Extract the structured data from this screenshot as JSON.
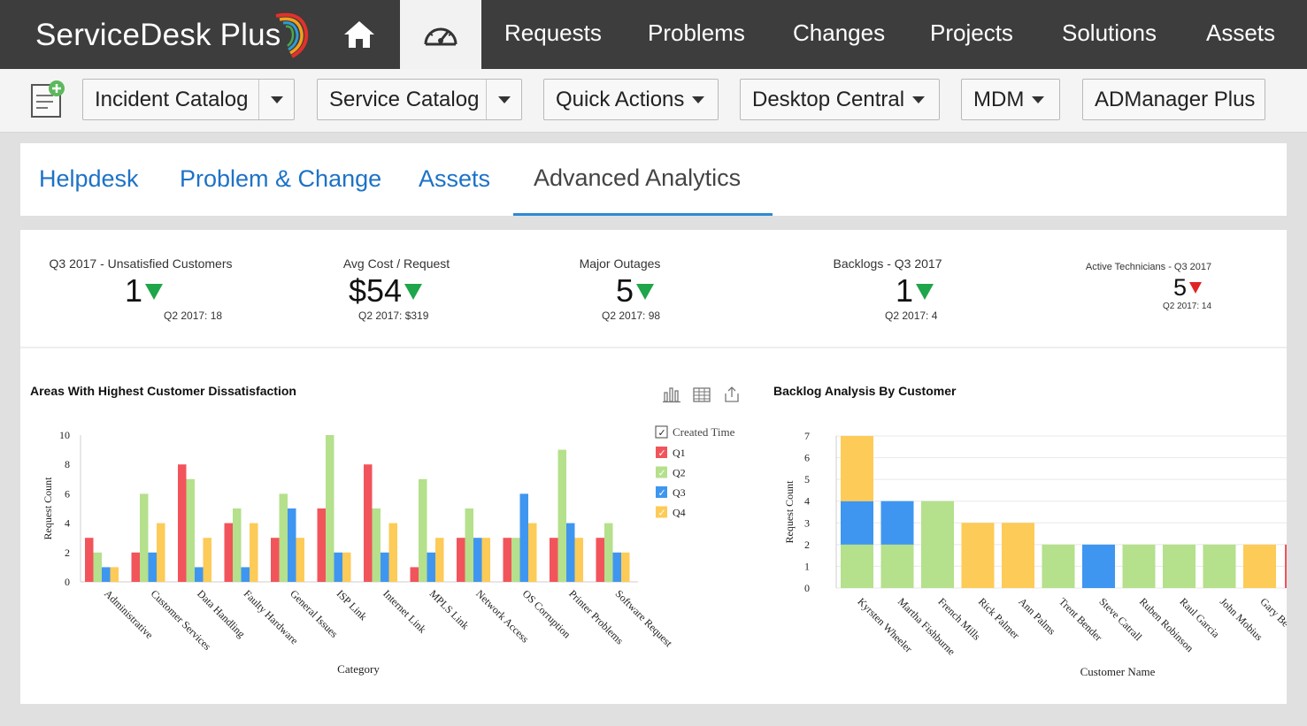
{
  "app": {
    "logo_text": "ServiceDesk Plus"
  },
  "top_nav": {
    "home_icon": "home-icon",
    "dashboard_icon": "speedometer-icon",
    "items": [
      "Requests",
      "Problems",
      "Changes",
      "Projects",
      "Solutions",
      "Assets"
    ]
  },
  "toolbar": {
    "new_request_icon": "new-request-icon",
    "incident_catalog": "Incident Catalog",
    "service_catalog": "Service Catalog",
    "quick_actions": "Quick Actions",
    "desktop_central": "Desktop Central",
    "mdm": "MDM",
    "admanager_plus": "ADManager Plus"
  },
  "subtabs": {
    "items": [
      "Helpdesk",
      "Problem & Change",
      "Assets",
      "Advanced Analytics"
    ],
    "active": "Advanced Analytics"
  },
  "kpis": [
    {
      "title": "Q3 2017 - Unsatisfied Customers",
      "value": "1",
      "prev": "Q2 2017: 18",
      "trend": "down",
      "trend_color": "#1fa54a"
    },
    {
      "title": "Avg Cost / Request",
      "value": "$54",
      "prev": "Q2 2017: $319",
      "trend": "down",
      "trend_color": "#1fa54a"
    },
    {
      "title": "Major Outages",
      "value": "5",
      "prev": "Q2 2017: 98",
      "trend": "down",
      "trend_color": "#1fa54a"
    },
    {
      "title": "Backlogs - Q3 2017",
      "value": "1",
      "prev": "Q2 2017: 4",
      "trend": "down",
      "trend_color": "#1fa54a"
    },
    {
      "title": "Active Technicians - Q3 2017",
      "value": "5",
      "prev": "Q2 2017: 14",
      "trend": "down",
      "trend_color": "#e02424"
    }
  ],
  "chart_icons": [
    "bar-chart-icon",
    "table-view-icon",
    "export-icon"
  ],
  "colors": {
    "Q1": "#f2545b",
    "Q2": "#b5e08c",
    "Q3": "#3f96f0",
    "Q4": "#fdcb57",
    "topbar": "#3d3d3d",
    "link": "#1d72c7"
  },
  "chart_data": [
    {
      "type": "bar",
      "title": "Areas With Highest Customer Dissatisfaction",
      "xlabel": "Category",
      "ylabel": "Request Count",
      "ylim": [
        0,
        10
      ],
      "yticks": [
        0,
        2,
        4,
        6,
        8,
        10
      ],
      "legend_title": "Created Time",
      "legend_position": "right",
      "grid": false,
      "categories": [
        "Administrative",
        "Customer Services",
        "Data Handling",
        "Faulty Hardware",
        "General Issues",
        "ISP Link",
        "Internet Link",
        "MPLS Link",
        "Network Access",
        "OS Corruption",
        "Printer Problems",
        "Software Request"
      ],
      "series": [
        {
          "name": "Q1",
          "values": [
            3,
            2,
            8,
            4,
            3,
            5,
            8,
            1,
            3,
            3,
            3,
            3
          ]
        },
        {
          "name": "Q2",
          "values": [
            2,
            6,
            7,
            5,
            6,
            10,
            5,
            7,
            5,
            3,
            9,
            4
          ]
        },
        {
          "name": "Q3",
          "values": [
            1,
            2,
            1,
            1,
            5,
            2,
            2,
            2,
            3,
            6,
            4,
            2
          ]
        },
        {
          "name": "Q4",
          "values": [
            1,
            4,
            3,
            4,
            3,
            2,
            4,
            3,
            3,
            4,
            3,
            2
          ]
        }
      ]
    },
    {
      "type": "bar",
      "stacked": true,
      "title": "Backlog Analysis By Customer",
      "xlabel": "Customer Name",
      "ylabel": "Request Count",
      "ylim": [
        0,
        7
      ],
      "yticks": [
        0,
        1,
        2,
        3,
        4,
        5,
        6,
        7
      ],
      "grid": true,
      "categories": [
        "Kyrsten Wheeler",
        "Martha Fishburne",
        "French Mills",
        "Rick Palmer",
        "Ann Palms",
        "Trent Bender",
        "Steve Catrall",
        "Ruben Robinson",
        "Raul Garcia",
        "John Mobius",
        "Gary Be"
      ],
      "series": [
        {
          "color": "#b5e08c",
          "values": [
            2,
            2,
            4,
            0,
            0,
            2,
            0,
            2,
            2,
            2,
            0
          ]
        },
        {
          "color": "#3f96f0",
          "values": [
            2,
            2,
            0,
            0,
            0,
            0,
            2,
            0,
            0,
            0,
            0
          ]
        },
        {
          "color": "#fdcb57",
          "values": [
            3,
            0,
            0,
            3,
            3,
            0,
            0,
            0,
            0,
            0,
            2
          ]
        }
      ]
    }
  ]
}
